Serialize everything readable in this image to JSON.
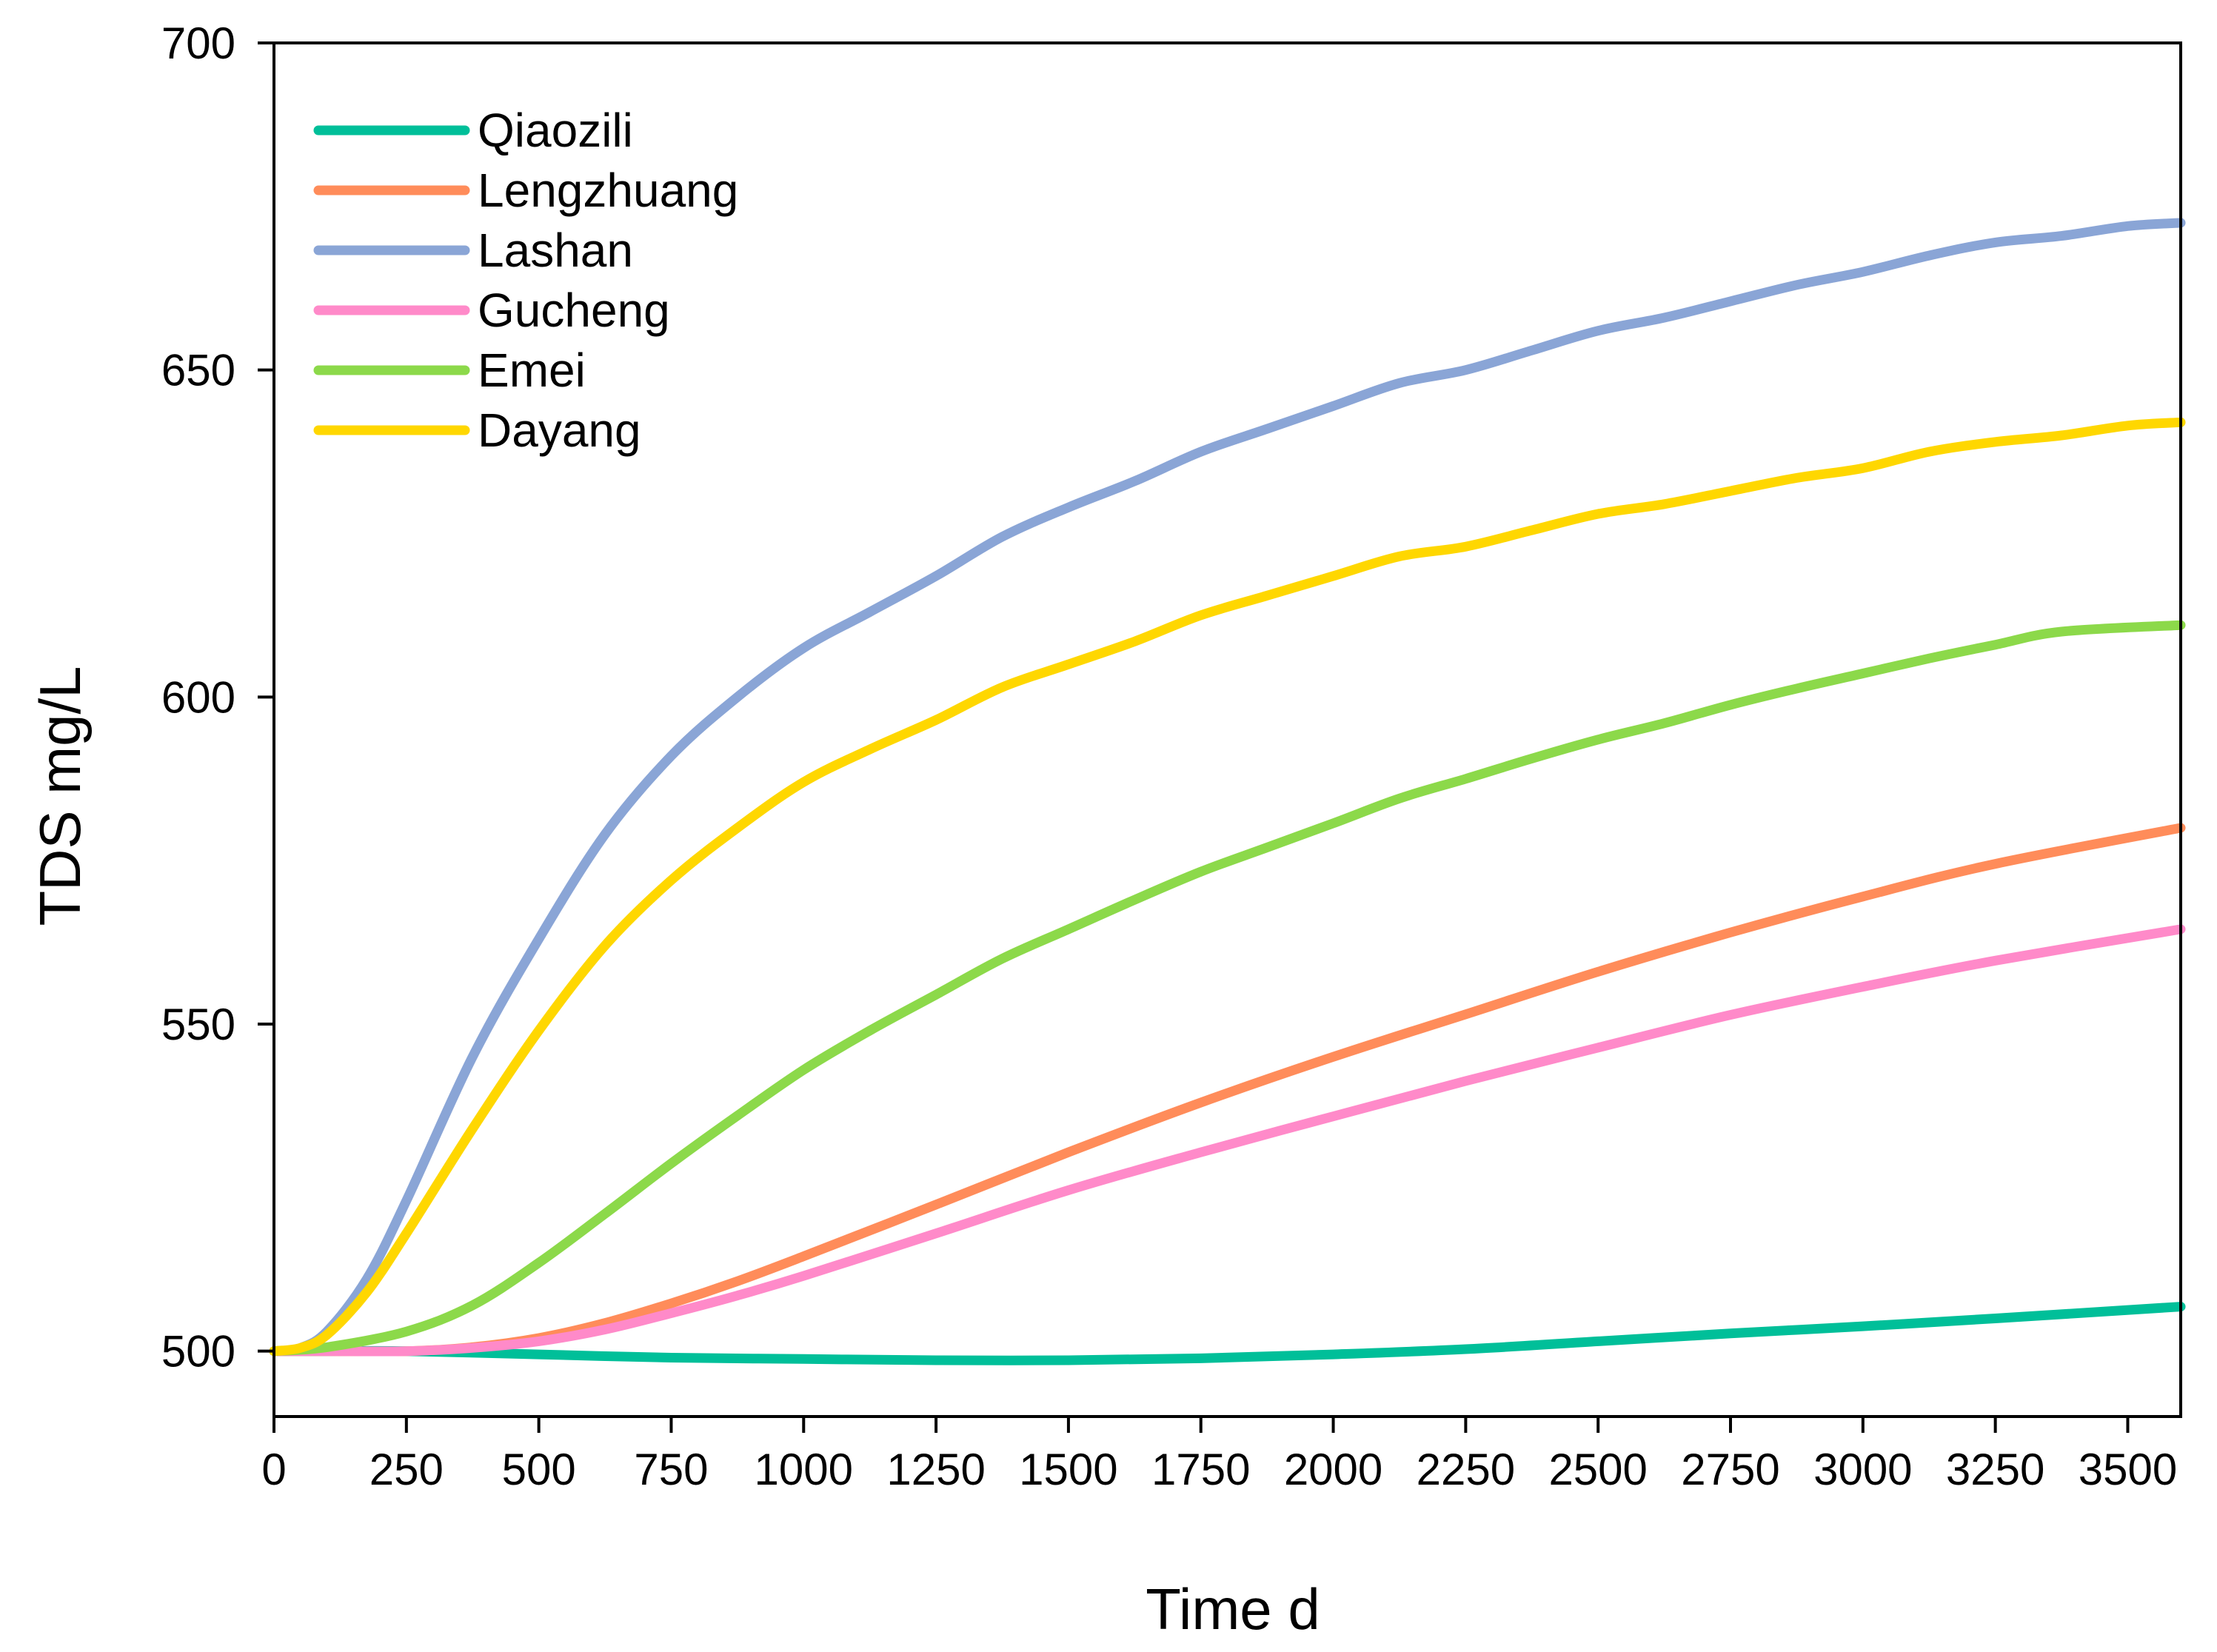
{
  "chart_data": {
    "type": "line",
    "title": "",
    "xlabel": "Time d",
    "ylabel": "TDS mg/L",
    "xlim": [
      0,
      3600
    ],
    "ylim": [
      490,
      700
    ],
    "xticks": [
      0,
      250,
      500,
      750,
      1000,
      1250,
      1500,
      1750,
      2000,
      2250,
      2500,
      2750,
      3000,
      3250,
      3500
    ],
    "yticks": [
      500,
      550,
      600,
      650,
      700
    ],
    "grid": false,
    "legend_position": "top-left",
    "series": [
      {
        "name": "Qiaozili",
        "color": "#00BF99",
        "x": [
          0,
          100,
          250,
          500,
          750,
          1000,
          1250,
          1500,
          1750,
          2000,
          2250,
          2500,
          2750,
          3000,
          3250,
          3600
        ],
        "values": [
          500,
          500,
          500,
          499.5,
          499,
          498.8,
          498.6,
          498.6,
          498.9,
          499.5,
          500.3,
          501.5,
          502.7,
          503.8,
          505,
          506.8
        ]
      },
      {
        "name": "Lengzhuang",
        "color": "#FF8C5A",
        "x": [
          0,
          100,
          250,
          375,
          500,
          625,
          750,
          875,
          1000,
          1250,
          1500,
          1750,
          2000,
          2250,
          2500,
          2750,
          3000,
          3250,
          3600
        ],
        "values": [
          500,
          500,
          500,
          500.6,
          502,
          504.3,
          507.3,
          510.7,
          514.5,
          522.4,
          530.4,
          538,
          545,
          551.5,
          558,
          564,
          569.5,
          574.5,
          580
        ]
      },
      {
        "name": "Lashan",
        "color": "#8AA5D6",
        "x": [
          0,
          50,
          100,
          175,
          250,
          375,
          500,
          625,
          750,
          875,
          1000,
          1125,
          1250,
          1375,
          1500,
          1625,
          1750,
          1875,
          2000,
          2125,
          2250,
          2375,
          2500,
          2625,
          2750,
          2875,
          3000,
          3125,
          3250,
          3375,
          3500,
          3600
        ],
        "values": [
          500,
          500.5,
          503,
          511,
          523,
          545,
          563,
          579,
          591,
          600,
          607.5,
          613,
          618.5,
          624.5,
          629,
          633,
          637.5,
          641,
          644.5,
          648,
          650,
          653,
          656,
          658,
          660.5,
          663,
          665,
          667.5,
          669.5,
          670.5,
          672,
          672.5
        ]
      },
      {
        "name": "Gucheng",
        "color": "#FF8AC9",
        "x": [
          0,
          100,
          250,
          375,
          500,
          625,
          750,
          875,
          1000,
          1250,
          1500,
          1750,
          2000,
          2250,
          2500,
          2750,
          3000,
          3250,
          3600
        ],
        "values": [
          500,
          500,
          500,
          500.5,
          501.5,
          503.3,
          505.8,
          508.5,
          511.5,
          518,
          524.6,
          530.4,
          535.9,
          541.3,
          546.4,
          551.4,
          555.7,
          559.7,
          564.5
        ]
      },
      {
        "name": "Emei",
        "color": "#8CD94A",
        "x": [
          0,
          100,
          250,
          375,
          500,
          625,
          750,
          875,
          1000,
          1125,
          1250,
          1375,
          1500,
          1625,
          1750,
          1875,
          2000,
          2125,
          2250,
          2375,
          2500,
          2625,
          2750,
          2875,
          3000,
          3125,
          3250,
          3375,
          3600
        ],
        "values": [
          500,
          500.6,
          503,
          507,
          513.5,
          521,
          528.7,
          536,
          543,
          549,
          554.5,
          560,
          564.5,
          569,
          573.3,
          577,
          580.7,
          584.5,
          587.5,
          590.6,
          593.5,
          596,
          598.8,
          601.3,
          603.6,
          605.9,
          608,
          610,
          611
        ]
      },
      {
        "name": "Dayang",
        "color": "#FFD700",
        "x": [
          0,
          50,
          100,
          175,
          250,
          375,
          500,
          625,
          750,
          875,
          1000,
          1125,
          1250,
          1375,
          1500,
          1625,
          1750,
          1875,
          2000,
          2125,
          2250,
          2375,
          2500,
          2625,
          2750,
          2875,
          3000,
          3125,
          3250,
          3375,
          3500,
          3600
        ],
        "values": [
          500,
          500.5,
          502.5,
          509,
          518,
          534,
          549,
          562,
          572,
          580,
          587,
          592,
          596.5,
          601.5,
          605,
          608.5,
          612.5,
          615.5,
          618.5,
          621.5,
          623,
          625.5,
          628,
          629.5,
          631.5,
          633.5,
          635,
          637.5,
          639,
          640,
          641.5,
          642
        ]
      }
    ]
  }
}
